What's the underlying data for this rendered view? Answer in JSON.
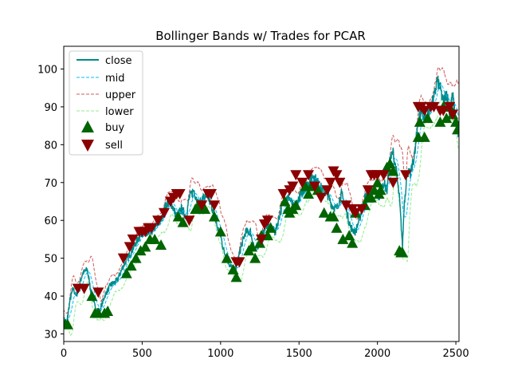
{
  "chart_data": {
    "type": "line",
    "title": "Bollinger Bands w/ Trades for PCAR",
    "xlabel": "",
    "ylabel": "",
    "xlim": [
      0,
      2520
    ],
    "ylim": [
      28,
      106
    ],
    "x_ticks": [
      0,
      500,
      1000,
      1500,
      2000,
      2500
    ],
    "y_ticks": [
      30,
      40,
      50,
      60,
      70,
      80,
      90,
      100
    ],
    "grid": false,
    "legend_position": "top-left",
    "colors": {
      "close": "#008b8b",
      "mid": "#00bfff",
      "upper": "#cd5c5c",
      "lower": "#90ee90",
      "buy": "#006400",
      "sell": "#8b0000"
    },
    "series": [
      {
        "name": "close",
        "style": "solid"
      },
      {
        "name": "mid",
        "style": "dashed"
      },
      {
        "name": "upper",
        "style": "dashed"
      },
      {
        "name": "lower",
        "style": "dashed"
      }
    ],
    "close_path": {
      "x": [
        0,
        20,
        40,
        60,
        80,
        100,
        120,
        150,
        170,
        200,
        230,
        260,
        300,
        340,
        380,
        420,
        460,
        500,
        540,
        580,
        620,
        650,
        680,
        700,
        720,
        750,
        780,
        800,
        830,
        860,
        890,
        920,
        950,
        980,
        1000,
        1020,
        1050,
        1080,
        1100,
        1130,
        1160,
        1190,
        1220,
        1260,
        1290,
        1320,
        1350,
        1380,
        1410,
        1440,
        1470,
        1500,
        1530,
        1560,
        1590,
        1620,
        1650,
        1680,
        1710,
        1740,
        1770,
        1800,
        1830,
        1860,
        1890,
        1920,
        1950,
        1980,
        2010,
        2040,
        2060,
        2080,
        2100,
        2120,
        2140,
        2160,
        2170,
        2190,
        2210,
        2240,
        2260,
        2280,
        2300,
        2320,
        2340,
        2360,
        2380,
        2400,
        2420,
        2440,
        2460,
        2480,
        2500,
        2515
      ],
      "y": [
        34,
        33,
        39,
        42,
        40,
        43,
        46,
        47,
        42,
        37,
        36,
        40,
        43,
        44,
        48,
        51,
        54,
        57,
        56,
        58,
        60,
        64,
        65,
        63,
        61,
        63,
        61,
        66,
        68,
        64,
        66,
        66,
        63,
        58,
        56,
        52,
        49,
        47,
        47,
        53,
        57,
        57,
        52,
        55,
        59,
        58,
        57,
        62,
        66,
        66,
        63,
        66,
        68,
        70,
        72,
        70,
        68,
        67,
        64,
        63,
        67,
        63,
        58,
        57,
        61,
        66,
        68,
        68,
        66,
        70,
        68,
        76,
        78,
        73,
        66,
        53,
        64,
        73,
        72,
        78,
        87,
        89,
        87,
        88,
        90,
        92,
        97,
        95,
        91,
        94,
        89,
        93,
        86,
        82
      ]
    },
    "buy": {
      "x": [
        10,
        25,
        180,
        200,
        220,
        260,
        280,
        400,
        430,
        460,
        490,
        520,
        550,
        580,
        620,
        730,
        760,
        840,
        860,
        880,
        900,
        960,
        1000,
        1040,
        1080,
        1100,
        1180,
        1200,
        1220,
        1250,
        1260,
        1300,
        1320,
        1410,
        1430,
        1440,
        1460,
        1480,
        1540,
        1560,
        1580,
        1620,
        1660,
        1700,
        1720,
        1740,
        1780,
        1820,
        1840,
        1860,
        1920,
        1940,
        1960,
        1980,
        2000,
        2010,
        2020,
        2060,
        2080,
        2100,
        2140,
        2150,
        2160,
        2260,
        2270,
        2300,
        2320,
        2400,
        2420,
        2440,
        2460,
        2480,
        2500,
        2510
      ],
      "y": [
        32.5,
        32.5,
        40,
        35.5,
        35.5,
        35.5,
        36,
        46,
        48,
        50,
        52,
        53,
        55,
        55,
        53.5,
        61,
        59.5,
        63,
        64,
        63,
        63,
        61,
        57,
        50,
        47,
        45,
        52,
        53,
        50,
        54,
        56,
        56,
        58,
        65,
        63,
        62,
        63,
        64,
        69,
        67,
        69,
        68,
        62,
        61,
        61,
        58,
        55,
        56,
        54,
        62,
        64,
        66,
        66,
        68,
        70,
        67,
        68,
        74,
        75,
        73,
        52,
        51.5,
        51.5,
        82,
        86,
        82,
        87,
        86,
        90,
        87,
        90,
        88,
        86,
        84
      ]
    },
    "sell": {
      "x": [
        90,
        130,
        220,
        380,
        420,
        440,
        480,
        500,
        520,
        540,
        560,
        600,
        640,
        680,
        700,
        720,
        740,
        800,
        880,
        920,
        940,
        960,
        1100,
        1120,
        1260,
        1280,
        1300,
        1400,
        1440,
        1460,
        1480,
        1520,
        1560,
        1600,
        1640,
        1680,
        1700,
        1720,
        1740,
        1760,
        1800,
        1840,
        1860,
        1900,
        1940,
        1960,
        1980,
        2000,
        2040,
        2100,
        2180,
        2260,
        2280,
        2300,
        2340,
        2360,
        2400,
        2420,
        2460,
        2480
      ],
      "y": [
        42,
        42,
        41,
        50,
        53,
        55,
        57,
        57,
        57,
        58,
        58,
        60,
        62,
        65,
        66,
        67,
        67,
        60,
        64,
        67,
        67,
        64,
        49,
        49,
        55,
        59,
        60,
        67,
        68,
        69,
        72,
        70,
        72,
        69,
        66,
        68,
        70,
        73,
        72,
        70,
        64,
        63,
        62,
        63,
        68,
        72,
        72,
        72,
        72,
        70,
        72,
        90,
        90,
        89,
        90,
        90,
        89,
        89,
        90,
        88
      ]
    },
    "legend": [
      "close",
      "mid",
      "upper",
      "lower",
      "buy",
      "sell"
    ]
  }
}
